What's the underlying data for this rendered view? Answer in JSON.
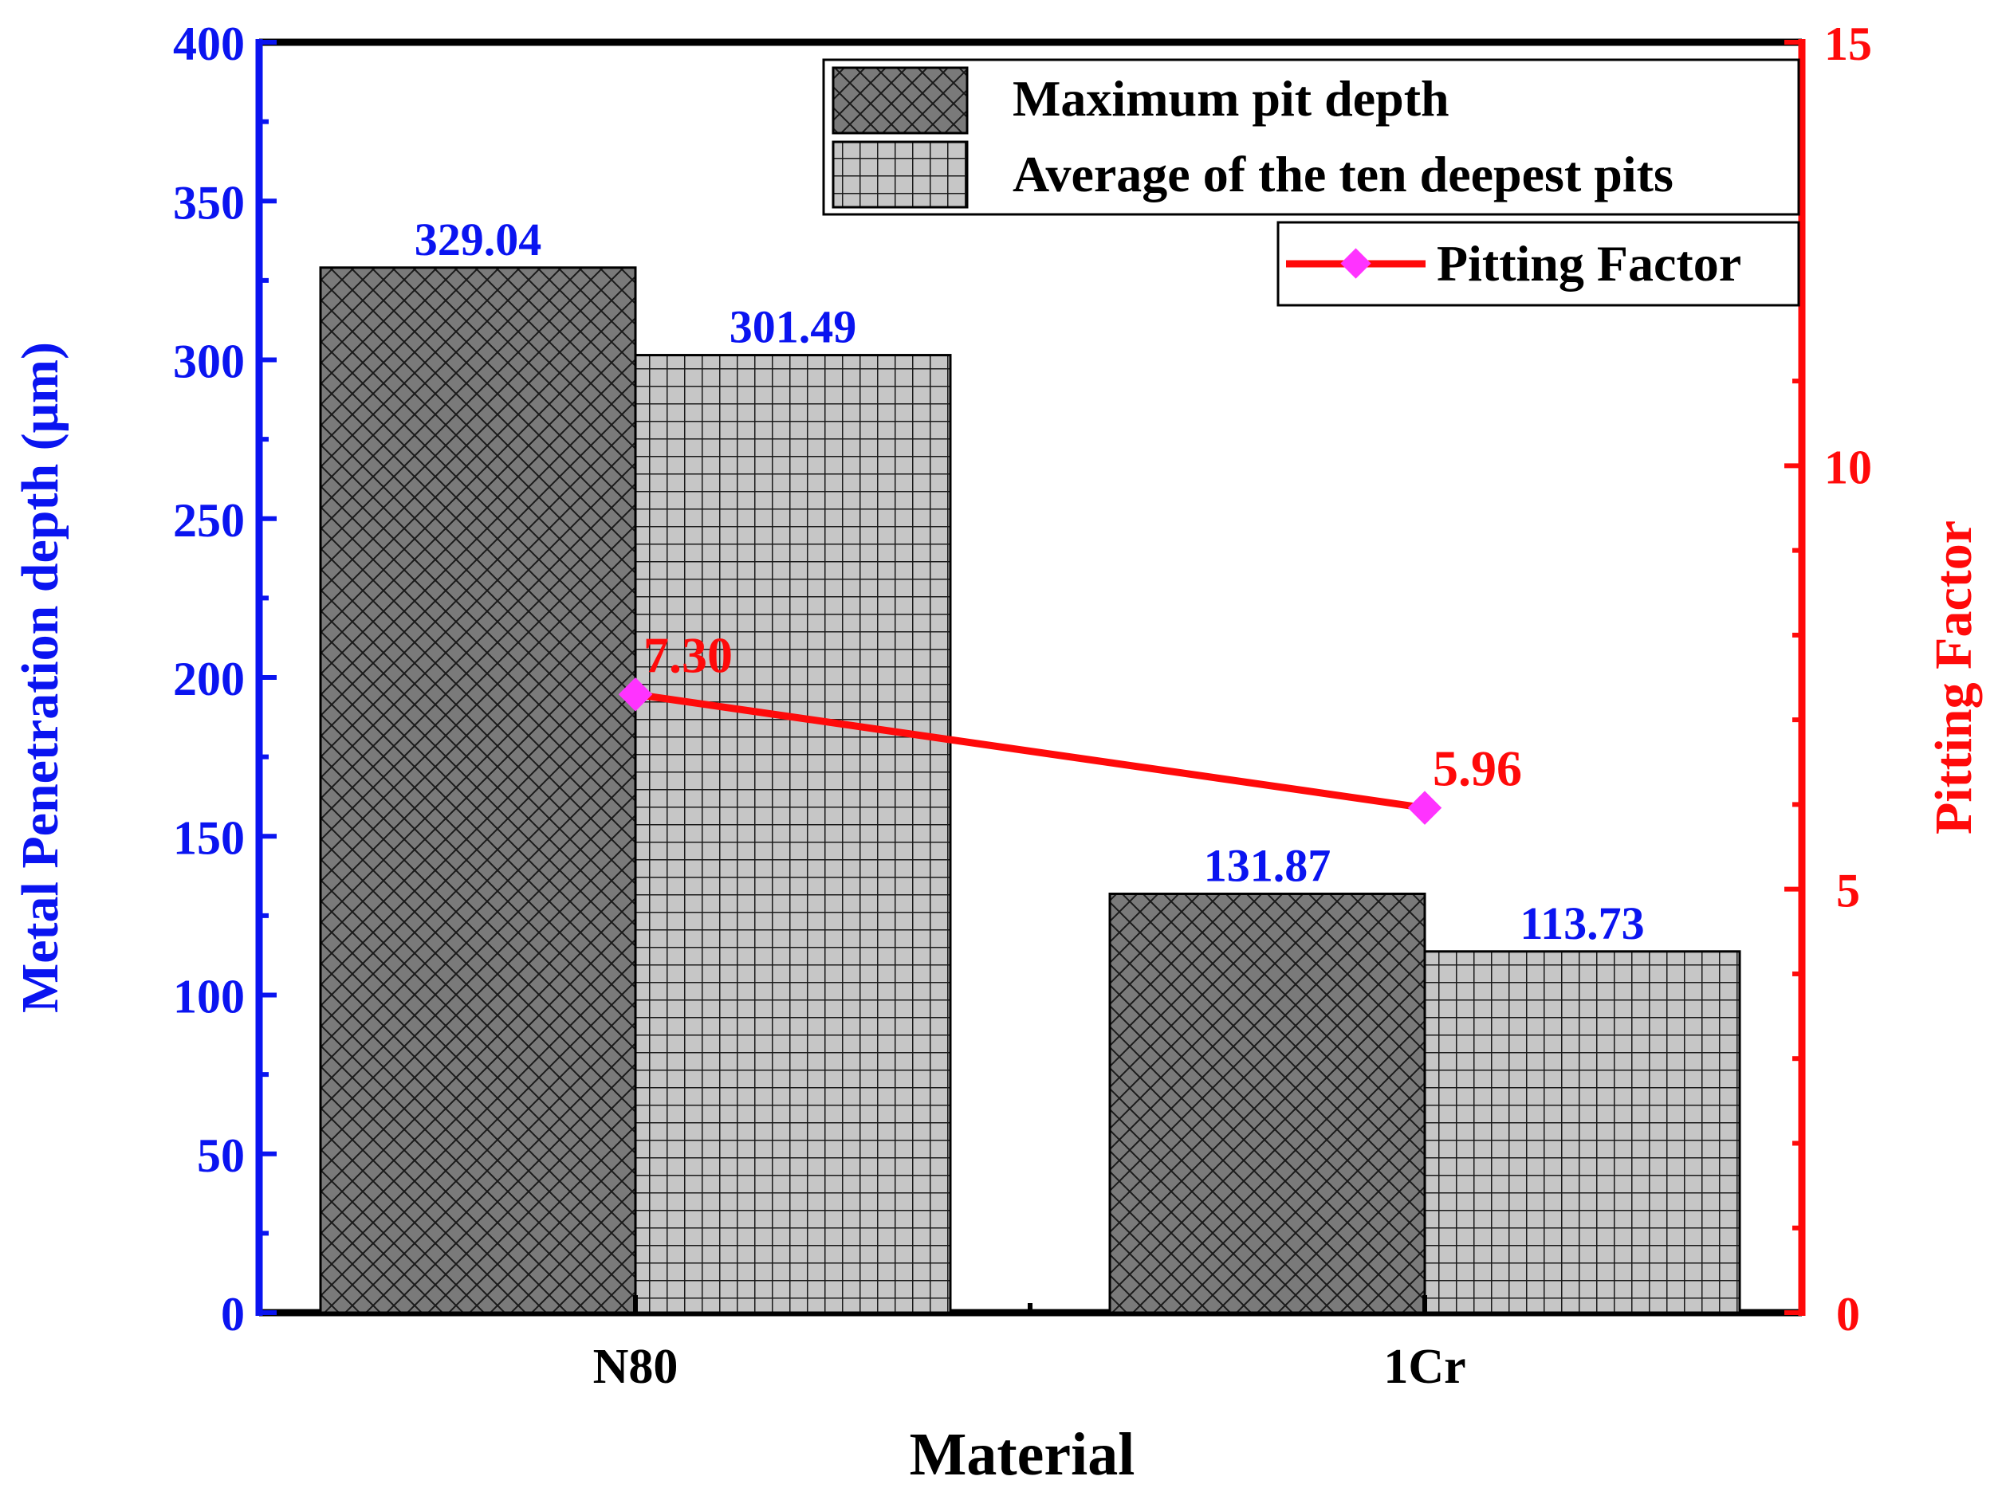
{
  "chart_data": {
    "type": "bar",
    "categories": [
      "N80",
      "1Cr"
    ],
    "series": [
      {
        "name": "Maximum pit depth",
        "axis": "left",
        "values": [
          329.04,
          131.87
        ],
        "labels": [
          "329.04",
          "131.87"
        ]
      },
      {
        "name": "Average of the ten deepest pits",
        "axis": "left",
        "values": [
          301.49,
          113.73
        ],
        "labels": [
          "301.49",
          "113.73"
        ]
      },
      {
        "name": "Pitting Factor",
        "axis": "right",
        "type": "line",
        "values": [
          7.3,
          5.96
        ],
        "labels": [
          "7.30",
          "5.96"
        ]
      }
    ],
    "xlabel": "Material",
    "ylabel": "Metal Penetration depth (μm)",
    "y2label": "Pitting Factor",
    "ylim": [
      0,
      400
    ],
    "y2lim": [
      0,
      15
    ],
    "yticks": [
      "0",
      "50",
      "100",
      "150",
      "200",
      "250",
      "300",
      "350",
      "400"
    ],
    "y2ticks": [
      "0",
      "5",
      "10",
      "15"
    ],
    "grid": false,
    "legend_position": "top-right"
  },
  "colors": {
    "left_axis": "#0a14f0",
    "right_axis": "#ff0a0a",
    "bar_dark": "#7a7a7a",
    "bar_light": "#c6c6c6",
    "line": "#ff0a0a",
    "marker": "#ff33ff",
    "axis": "#000000",
    "bar_label": "#0a14f0",
    "line_label": "#ff0a0a"
  }
}
